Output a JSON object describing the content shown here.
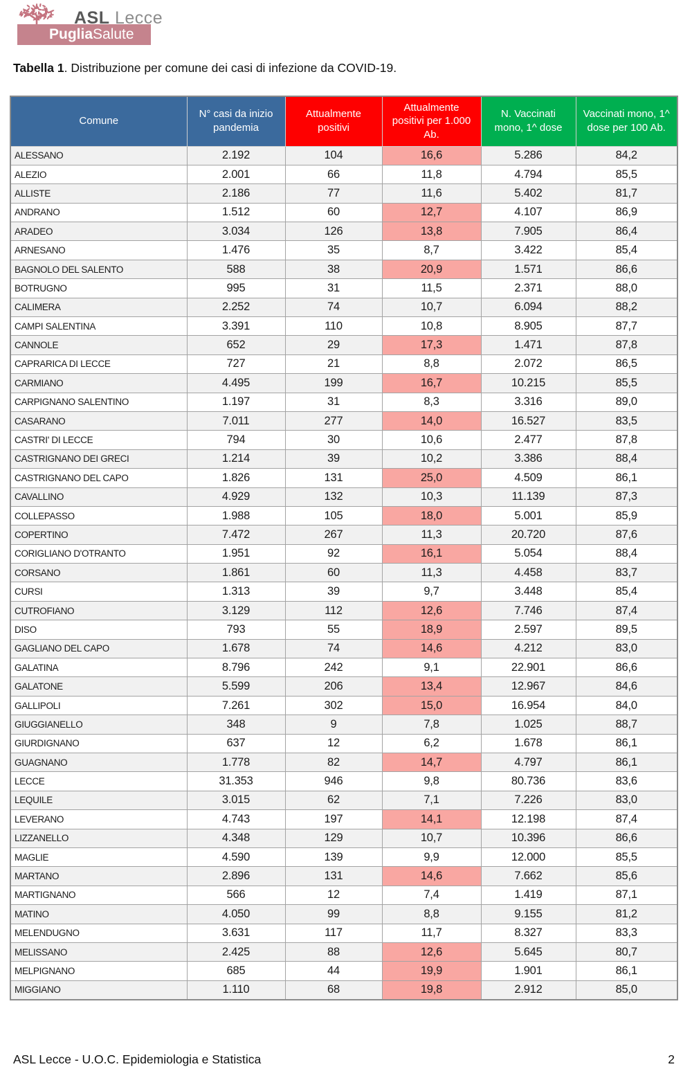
{
  "page": {
    "title_bold": "Tabella 1",
    "title_rest": ". Distribuzione per comune dei casi di infezione da COVID-19.",
    "footer_left": "ASL Lecce - U.O.C. Epidemiologia e Statistica",
    "footer_page": "2"
  },
  "logo": {
    "org_bold": "ASL",
    "org_rest": "Lecce",
    "banner_bold": "Puglia",
    "banner_rest": "Salute"
  },
  "colors": {
    "header_blue": "#3B6A9D",
    "header_red": "#FE0000",
    "header_green": "#00AF50",
    "highlight_pink": "#F9A7A2",
    "stripe_gray": "#F1F1F1",
    "logo_rose": "#C5838D",
    "leaf_rose": "#C4737F"
  },
  "table": {
    "columns": [
      {
        "label": "Comune",
        "group": "blue"
      },
      {
        "label": "N° casi da inizio pandemia",
        "group": "blue"
      },
      {
        "label": "Attualmente positivi",
        "group": "red"
      },
      {
        "label": "Attualmente positivi per 1.000 Ab.",
        "group": "red"
      },
      {
        "label": "N. Vaccinati mono, 1^ dose",
        "group": "green"
      },
      {
        "label": "Vaccinati mono, 1^ dose per 100 Ab.",
        "group": "green"
      }
    ],
    "column_keys": [
      "comune",
      "casi-da-inizio-pandemia",
      "attualmente-positivi",
      "positivi-per-1000-ab",
      "vaccinati-1-dose",
      "vaccinati-per-100-ab"
    ],
    "rows": [
      [
        "ALESSANO",
        "2.192",
        "104",
        "16,6",
        true,
        "5.286",
        "84,2"
      ],
      [
        "ALEZIO",
        "2.001",
        "66",
        "11,8",
        false,
        "4.794",
        "85,5"
      ],
      [
        "ALLISTE",
        "2.186",
        "77",
        "11,6",
        false,
        "5.402",
        "81,7"
      ],
      [
        "ANDRANO",
        "1.512",
        "60",
        "12,7",
        true,
        "4.107",
        "86,9"
      ],
      [
        "ARADEO",
        "3.034",
        "126",
        "13,8",
        true,
        "7.905",
        "86,4"
      ],
      [
        "ARNESANO",
        "1.476",
        "35",
        "8,7",
        false,
        "3.422",
        "85,4"
      ],
      [
        "BAGNOLO DEL SALENTO",
        "588",
        "38",
        "20,9",
        true,
        "1.571",
        "86,6"
      ],
      [
        "BOTRUGNO",
        "995",
        "31",
        "11,5",
        false,
        "2.371",
        "88,0"
      ],
      [
        "CALIMERA",
        "2.252",
        "74",
        "10,7",
        false,
        "6.094",
        "88,2"
      ],
      [
        "CAMPI SALENTINA",
        "3.391",
        "110",
        "10,8",
        false,
        "8.905",
        "87,7"
      ],
      [
        "CANNOLE",
        "652",
        "29",
        "17,3",
        true,
        "1.471",
        "87,8"
      ],
      [
        "CAPRARICA DI LECCE",
        "727",
        "21",
        "8,8",
        false,
        "2.072",
        "86,5"
      ],
      [
        "CARMIANO",
        "4.495",
        "199",
        "16,7",
        true,
        "10.215",
        "85,5"
      ],
      [
        "CARPIGNANO SALENTINO",
        "1.197",
        "31",
        "8,3",
        false,
        "3.316",
        "89,0"
      ],
      [
        "CASARANO",
        "7.011",
        "277",
        "14,0",
        true,
        "16.527",
        "83,5"
      ],
      [
        "CASTRI' DI LECCE",
        "794",
        "30",
        "10,6",
        false,
        "2.477",
        "87,8"
      ],
      [
        "CASTRIGNANO DEI GRECI",
        "1.214",
        "39",
        "10,2",
        false,
        "3.386",
        "88,4"
      ],
      [
        "CASTRIGNANO DEL CAPO",
        "1.826",
        "131",
        "25,0",
        true,
        "4.509",
        "86,1"
      ],
      [
        "CAVALLINO",
        "4.929",
        "132",
        "10,3",
        false,
        "11.139",
        "87,3"
      ],
      [
        "COLLEPASSO",
        "1.988",
        "105",
        "18,0",
        true,
        "5.001",
        "85,9"
      ],
      [
        "COPERTINO",
        "7.472",
        "267",
        "11,3",
        false,
        "20.720",
        "87,6"
      ],
      [
        "CORIGLIANO D'OTRANTO",
        "1.951",
        "92",
        "16,1",
        true,
        "5.054",
        "88,4"
      ],
      [
        "CORSANO",
        "1.861",
        "60",
        "11,3",
        false,
        "4.458",
        "83,7"
      ],
      [
        "CURSI",
        "1.313",
        "39",
        "9,7",
        false,
        "3.448",
        "85,4"
      ],
      [
        "CUTROFIANO",
        "3.129",
        "112",
        "12,6",
        true,
        "7.746",
        "87,4"
      ],
      [
        "DISO",
        "793",
        "55",
        "18,9",
        true,
        "2.597",
        "89,5"
      ],
      [
        "GAGLIANO DEL CAPO",
        "1.678",
        "74",
        "14,6",
        true,
        "4.212",
        "83,0"
      ],
      [
        "GALATINA",
        "8.796",
        "242",
        "9,1",
        false,
        "22.901",
        "86,6"
      ],
      [
        "GALATONE",
        "5.599",
        "206",
        "13,4",
        true,
        "12.967",
        "84,6"
      ],
      [
        "GALLIPOLI",
        "7.261",
        "302",
        "15,0",
        true,
        "16.954",
        "84,0"
      ],
      [
        "GIUGGIANELLO",
        "348",
        "9",
        "7,8",
        false,
        "1.025",
        "88,7"
      ],
      [
        "GIURDIGNANO",
        "637",
        "12",
        "6,2",
        false,
        "1.678",
        "86,1"
      ],
      [
        "GUAGNANO",
        "1.778",
        "82",
        "14,7",
        true,
        "4.797",
        "86,1"
      ],
      [
        "LECCE",
        "31.353",
        "946",
        "9,8",
        false,
        "80.736",
        "83,6"
      ],
      [
        "LEQUILE",
        "3.015",
        "62",
        "7,1",
        false,
        "7.226",
        "83,0"
      ],
      [
        "LEVERANO",
        "4.743",
        "197",
        "14,1",
        true,
        "12.198",
        "87,4"
      ],
      [
        "LIZZANELLO",
        "4.348",
        "129",
        "10,7",
        false,
        "10.396",
        "86,6"
      ],
      [
        "MAGLIE",
        "4.590",
        "139",
        "9,9",
        false,
        "12.000",
        "85,5"
      ],
      [
        "MARTANO",
        "2.896",
        "131",
        "14,6",
        true,
        "7.662",
        "85,6"
      ],
      [
        "MARTIGNANO",
        "566",
        "12",
        "7,4",
        false,
        "1.419",
        "87,1"
      ],
      [
        "MATINO",
        "4.050",
        "99",
        "8,8",
        false,
        "9.155",
        "81,2"
      ],
      [
        "MELENDUGNO",
        "3.631",
        "117",
        "11,7",
        false,
        "8.327",
        "83,3"
      ],
      [
        "MELISSANO",
        "2.425",
        "88",
        "12,6",
        true,
        "5.645",
        "80,7"
      ],
      [
        "MELPIGNANO",
        "685",
        "44",
        "19,9",
        true,
        "1.901",
        "86,1"
      ],
      [
        "MIGGIANO",
        "1.110",
        "68",
        "19,8",
        true,
        "2.912",
        "85,0"
      ]
    ]
  }
}
